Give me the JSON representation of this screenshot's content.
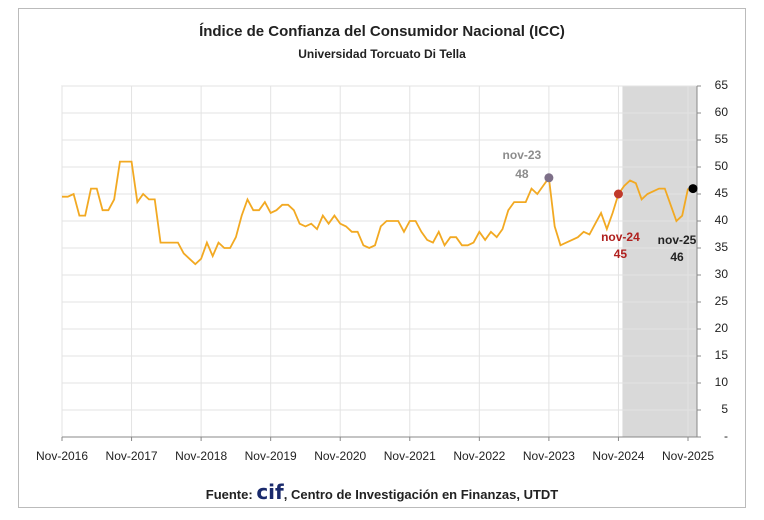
{
  "chart_data": {
    "type": "line",
    "title": "Índice de Confianza del Consumidor Nacional (ICC)",
    "subtitle": "Universidad Torcuato Di Tella",
    "categories": [
      "Nov-2016",
      null,
      null,
      null,
      null,
      null,
      null,
      null,
      null,
      null,
      null,
      null,
      "Nov-2017",
      null,
      null,
      null,
      null,
      null,
      null,
      null,
      null,
      null,
      null,
      null,
      "Nov-2018",
      null,
      null,
      null,
      null,
      null,
      null,
      null,
      null,
      null,
      null,
      null,
      "Nov-2019",
      null,
      null,
      null,
      null,
      null,
      null,
      null,
      null,
      null,
      null,
      null,
      "Nov-2020",
      null,
      null,
      null,
      null,
      null,
      null,
      null,
      null,
      null,
      null,
      null,
      "Nov-2021",
      null,
      null,
      null,
      null,
      null,
      null,
      null,
      null,
      null,
      null,
      null,
      "Nov-2022",
      null,
      null,
      null,
      null,
      null,
      null,
      null,
      null,
      null,
      null,
      null,
      "Nov-2023",
      null,
      null,
      null,
      null,
      null,
      null,
      null,
      null,
      null,
      null,
      null,
      "Nov-2024",
      null,
      null,
      null,
      null,
      null,
      null,
      null,
      null,
      null,
      null,
      null,
      "Nov-2025"
    ],
    "series": [
      {
        "name": "ICC",
        "color": "#f2a922",
        "values": [
          44.5,
          44.5,
          45,
          41,
          41,
          46,
          46,
          42,
          42,
          44,
          51,
          51,
          51,
          43.5,
          45,
          44,
          44,
          36,
          36,
          36,
          36,
          34,
          33,
          32,
          33,
          36,
          33.5,
          36,
          35,
          35,
          37,
          41,
          44,
          42,
          42,
          43.5,
          41.5,
          42,
          43,
          43,
          42,
          39.5,
          39,
          39.5,
          38.5,
          41,
          39.5,
          41,
          39.5,
          39,
          38,
          38,
          35.5,
          35,
          35.5,
          39,
          40,
          40,
          40,
          38,
          40,
          40,
          38,
          36.5,
          36,
          38,
          35.5,
          37,
          37,
          35.5,
          35.5,
          36,
          38,
          36.5,
          38,
          37,
          38.5,
          42,
          43.5,
          43.5,
          43.5,
          46,
          45,
          46.5,
          48,
          39,
          35.5,
          36,
          36.5,
          37,
          38,
          37.5,
          39.5,
          41.5,
          38.5,
          41.5,
          45,
          46.5,
          47.5,
          47,
          44,
          45,
          45.5,
          46,
          46,
          43,
          40,
          41,
          46
        ]
      }
    ],
    "ylim": [
      0,
      65
    ],
    "yticks": [
      {
        "value": 0,
        "label": "-"
      },
      5,
      10,
      15,
      20,
      25,
      30,
      35,
      40,
      45,
      50,
      55,
      60,
      65
    ],
    "grid": true,
    "highlights": [
      {
        "label": "nov-23",
        "x": "Nov-2023",
        "value": 48,
        "color": "#7d6f88",
        "text_color": "#8c8c8c"
      },
      {
        "label": "nov-24",
        "x": "Nov-2024",
        "value": 45,
        "color": "#c0392b",
        "text_color": "#b0201e"
      },
      {
        "label": "nov-25",
        "x": "Nov-2025",
        "value": 46,
        "color": "#000000",
        "text_color": "#222222"
      }
    ],
    "shaded_from": "Nov-2024",
    "source_prefix": "Fuente:",
    "source_logo": "cif",
    "source_rest": ", Centro de Investigación en Finanzas, UTDT"
  }
}
